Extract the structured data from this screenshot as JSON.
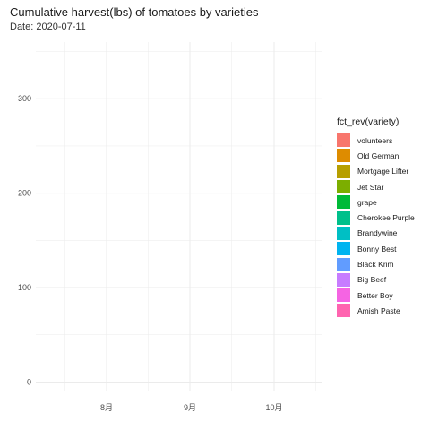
{
  "title": "Cumulative harvest(lbs) of tomatoes by varieties",
  "subtitle": "Date: 2020-07-11",
  "chart_data": {
    "type": "bar",
    "title": "Cumulative harvest(lbs) of tomatoes by varieties",
    "subtitle": "Date: 2020-07-11",
    "xlabel": "",
    "ylabel": "",
    "x_ticks": [
      "8月",
      "9月",
      "10月"
    ],
    "y_ticks": [
      0,
      100,
      200,
      300
    ],
    "ylim": [
      -10,
      360
    ],
    "grid": true,
    "legend_title": "fct_rev(variety)",
    "legend_position": "right",
    "series": [
      {
        "name": "volunteers",
        "color": "#F8766D"
      },
      {
        "name": "Old German",
        "color": "#DE8C00"
      },
      {
        "name": "Mortgage Lifter",
        "color": "#B79F00"
      },
      {
        "name": "Jet Star",
        "color": "#7CAE00"
      },
      {
        "name": "grape",
        "color": "#00BA38"
      },
      {
        "name": "Cherokee Purple",
        "color": "#00C08B"
      },
      {
        "name": "Brandywine",
        "color": "#00BFC4"
      },
      {
        "name": "Bonny Best",
        "color": "#00B4F0"
      },
      {
        "name": "Black Krim",
        "color": "#619CFF"
      },
      {
        "name": "Big Beef",
        "color": "#C77CFF"
      },
      {
        "name": "Better Boy",
        "color": "#F564E3"
      },
      {
        "name": "Amish Paste",
        "color": "#FF64B0"
      }
    ]
  }
}
